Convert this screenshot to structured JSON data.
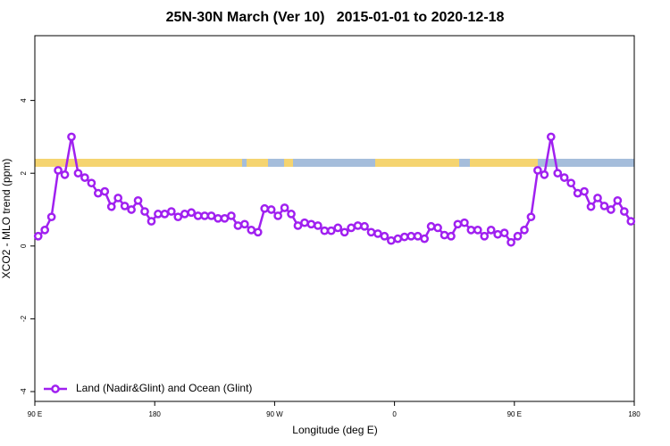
{
  "chart_data": {
    "type": "line",
    "title": "25N-30N March (Ver 10)   2015-01-01 to 2020-12-18",
    "x_label": "Longitude (deg E)",
    "y_label": "XCO2 - MLO trend (ppm)",
    "xlim": [
      90,
      540
    ],
    "ylim": [
      -4.27,
      5.78
    ],
    "xticks": [
      {
        "value": 90,
        "label": "90 E"
      },
      180,
      {
        "value": 270,
        "label": "90 W"
      },
      {
        "value": 360,
        "label": "0"
      },
      {
        "value": 450,
        "label": "90 E"
      },
      {
        "value": 540,
        "label": "180"
      }
    ],
    "yticks": [
      -4,
      -2,
      0,
      2,
      4
    ],
    "legend": "bottom-left",
    "x": [
      92.5,
      97.5,
      102.5,
      107.5,
      112.5,
      117.5,
      122.5,
      127.5,
      132.5,
      137.5,
      142.5,
      147.5,
      152.5,
      157.5,
      162.5,
      167.5,
      172.5,
      177.5,
      182.5,
      187.5,
      192.5,
      197.5,
      202.5,
      207.5,
      212.5,
      217.5,
      222.5,
      227.5,
      232.5,
      237.5,
      242.5,
      247.5,
      252.5,
      257.5,
      262.5,
      267.5,
      272.5,
      277.5,
      282.5,
      287.5,
      292.5,
      297.5,
      302.5,
      307.5,
      312.5,
      317.5,
      322.5,
      327.5,
      332.5,
      337.5,
      342.5,
      347.5,
      352.5,
      357.5,
      362.5,
      367.5,
      372.5,
      377.5,
      382.5,
      387.5,
      392.5,
      397.5,
      402.5,
      407.5,
      412.5,
      417.5,
      422.5,
      427.5,
      432.5,
      437.5,
      442.5,
      447.5,
      452.5,
      457.5,
      462.5,
      467.5,
      472.5,
      477.5,
      482.5,
      487.5,
      492.5,
      497.5,
      502.5,
      507.5,
      512.5,
      517.5,
      522.5,
      527.5,
      532.5,
      537.5
    ],
    "series": [
      {
        "name": "Land (Nadir&Glint) and Ocean (Glint)",
        "color": "#a020f0",
        "values": [
          0.27,
          0.44,
          0.8,
          2.08,
          1.96,
          3.0,
          2.0,
          1.88,
          1.73,
          1.45,
          1.5,
          1.08,
          1.32,
          1.1,
          1.0,
          1.25,
          0.95,
          0.68,
          0.88,
          0.88,
          0.95,
          0.8,
          0.88,
          0.92,
          0.83,
          0.83,
          0.83,
          0.76,
          0.76,
          0.83,
          0.56,
          0.6,
          0.44,
          0.38,
          1.03,
          1.0,
          0.83,
          1.05,
          0.88,
          0.56,
          0.64,
          0.6,
          0.56,
          0.42,
          0.42,
          0.5,
          0.38,
          0.5,
          0.56,
          0.54,
          0.38,
          0.34,
          0.27,
          0.15,
          0.2,
          0.25,
          0.27,
          0.27,
          0.2,
          0.54,
          0.5,
          0.3,
          0.27,
          0.6,
          0.64,
          0.44,
          0.44,
          0.27,
          0.44,
          0.32,
          0.36,
          0.1,
          0.27,
          0.44,
          0.8,
          2.08,
          1.96,
          3.0,
          2.0,
          1.88,
          1.73,
          1.45,
          1.5,
          1.08,
          1.32,
          1.1,
          1.0,
          1.25,
          0.95,
          0.68
        ]
      }
    ]
  }
}
